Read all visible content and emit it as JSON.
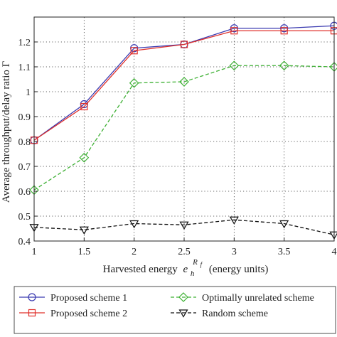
{
  "chart_data": {
    "type": "line",
    "title": "",
    "xlabel_main": "Harvested energy",
    "xlabel_symbol": "e",
    "xlabel_subscript": "h",
    "xlabel_superscript": "R",
    "xlabel_superscript_sub": "f",
    "xlabel_units": "(energy units)",
    "ylabel": "Average throughput/delay ratio Γ",
    "xlim": [
      1,
      4
    ],
    "ylim": [
      0.4,
      1.3
    ],
    "x_ticks": [
      "1",
      "1.5",
      "2",
      "2.5",
      "3",
      "3.5",
      "4"
    ],
    "y_ticks": [
      "0.4",
      "0.5",
      "0.6",
      "0.7",
      "0.8",
      "0.9",
      "1",
      "1.1",
      "1.2"
    ],
    "grid": true,
    "x": [
      1,
      1.5,
      2,
      2.5,
      3,
      3.5,
      4
    ],
    "series": [
      {
        "name": "Proposed scheme 1",
        "color": "#3a3ab0",
        "marker": "circle",
        "dash": "solid",
        "values": [
          0.805,
          0.95,
          1.175,
          1.19,
          1.255,
          1.255,
          1.265
        ]
      },
      {
        "name": "Proposed scheme 2",
        "color": "#e0302b",
        "marker": "square",
        "dash": "solid",
        "values": [
          0.805,
          0.94,
          1.165,
          1.19,
          1.245,
          1.245,
          1.245
        ]
      },
      {
        "name": "Optimally unrelated scheme",
        "color": "#3db033",
        "marker": "diamond",
        "dash": "dashed",
        "values": [
          0.605,
          0.735,
          1.035,
          1.04,
          1.105,
          1.105,
          1.1
        ]
      },
      {
        "name": "Random scheme",
        "color": "#111111",
        "marker": "triangle-down",
        "dash": "dashed",
        "values": [
          0.455,
          0.445,
          0.47,
          0.465,
          0.485,
          0.47,
          0.425
        ]
      }
    ],
    "legend_position": "bottom"
  }
}
